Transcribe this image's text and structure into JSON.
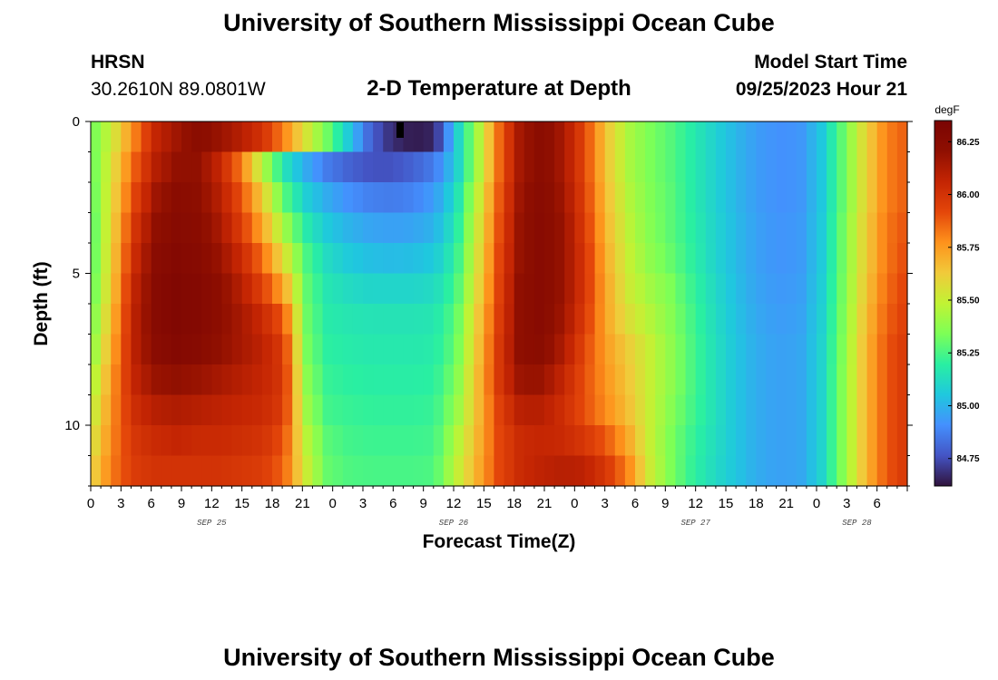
{
  "page": {
    "title_top": "University of Southern Mississippi Ocean Cube",
    "title_bottom": "University of Southern Mississippi Ocean Cube",
    "station_name": "HRSN",
    "station_coords": "30.2610N  89.0801W",
    "plot_title": "2-D Temperature at Depth",
    "model_start_label": "Model Start Time",
    "model_start_value": "09/25/2023 Hour 21"
  },
  "colors": {
    "scale": [
      "#30123b",
      "#4454c4",
      "#4490fe",
      "#1fc8de",
      "#29efa2",
      "#7dff56",
      "#c1f334",
      "#f1ca3a",
      "#fe921c",
      "#e4460a",
      "#c42503",
      "#8f0f01",
      "#7a0403"
    ]
  },
  "chart_data": {
    "type": "heatmap",
    "title": "2-D Temperature at Depth",
    "xlabel": "Forecast Time(Z)",
    "ylabel": "Depth (ft)",
    "colorbar_unit": "degF",
    "colorbar_ticks": [
      "86.25",
      "86.00",
      "85.75",
      "85.50",
      "85.25",
      "85.00",
      "84.75"
    ],
    "colorbar_values": [
      86.25,
      86.0,
      85.75,
      85.5,
      85.25,
      85.0,
      84.75
    ],
    "colorbar_range": [
      84.62,
      86.35
    ],
    "x_range_hours": [
      0,
      81
    ],
    "x_ticks": [
      "0",
      "3",
      "6",
      "9",
      "12",
      "15",
      "18",
      "21",
      "0",
      "3",
      "6",
      "9",
      "12",
      "15",
      "18",
      "21",
      "0",
      "3",
      "6",
      "9",
      "12",
      "15",
      "18",
      "21",
      "0",
      "3",
      "6"
    ],
    "date_labels": [
      {
        "text": "SEP 25",
        "hour": 12
      },
      {
        "text": "SEP 26",
        "hour": 36
      },
      {
        "text": "SEP 27",
        "hour": 60
      },
      {
        "text": "SEP 28",
        "hour": 76
      }
    ],
    "y_range_ft": [
      0,
      12
    ],
    "y_ticks": [
      "0",
      "5",
      "10"
    ],
    "y_tick_values": [
      0,
      5,
      10
    ],
    "depth_rows_ft": [
      0,
      1,
      2,
      3,
      4,
      5,
      6,
      7,
      8,
      9,
      10,
      11
    ],
    "time_step_hours": 1,
    "temperature_degF": [
      [
        85.3,
        85.52,
        85.79,
        86.06,
        86.16,
        86.24,
        86.18,
        86.1,
        86.0,
        85.8,
        85.55,
        85.32,
        85.06,
        84.8,
        84.68,
        84.64,
        84.66,
        85.06,
        85.42,
        85.85,
        86.16,
        86.24,
        86.14,
        85.92,
        85.64,
        85.44,
        85.34,
        85.27,
        85.18,
        85.09,
        85.01,
        84.94,
        84.91,
        84.92,
        85.05,
        85.3,
        85.58,
        85.8,
        85.88
      ],
      [
        85.28,
        85.56,
        85.86,
        86.1,
        86.2,
        86.2,
        86.06,
        85.82,
        85.46,
        85.15,
        84.98,
        84.86,
        84.8,
        84.76,
        84.76,
        84.8,
        84.86,
        85.06,
        85.42,
        85.85,
        86.16,
        86.24,
        86.14,
        85.92,
        85.64,
        85.44,
        85.34,
        85.27,
        85.18,
        85.09,
        85.01,
        84.94,
        84.91,
        84.92,
        85.05,
        85.3,
        85.58,
        85.8,
        85.88
      ],
      [
        85.26,
        85.58,
        85.92,
        86.16,
        86.24,
        86.22,
        86.1,
        85.9,
        85.62,
        85.28,
        85.08,
        84.98,
        84.91,
        84.87,
        84.86,
        84.88,
        84.94,
        85.12,
        85.48,
        85.88,
        86.18,
        86.26,
        86.16,
        85.94,
        85.66,
        85.46,
        85.35,
        85.28,
        85.18,
        85.09,
        85.01,
        84.94,
        84.91,
        84.92,
        85.05,
        85.3,
        85.58,
        85.8,
        85.88
      ],
      [
        85.24,
        85.6,
        85.98,
        86.2,
        86.26,
        86.24,
        86.14,
        85.96,
        85.72,
        85.42,
        85.18,
        85.06,
        85.0,
        84.96,
        84.95,
        84.96,
        85.0,
        85.16,
        85.52,
        85.9,
        86.2,
        86.26,
        86.18,
        85.96,
        85.68,
        85.48,
        85.36,
        85.28,
        85.19,
        85.1,
        85.02,
        84.95,
        84.92,
        84.93,
        85.06,
        85.32,
        85.6,
        85.82,
        85.9
      ],
      [
        85.24,
        85.62,
        86.02,
        86.24,
        86.28,
        86.26,
        86.18,
        86.04,
        85.84,
        85.56,
        85.26,
        85.12,
        85.06,
        85.03,
        85.02,
        85.03,
        85.06,
        85.2,
        85.55,
        85.92,
        86.2,
        86.26,
        86.18,
        85.98,
        85.7,
        85.5,
        85.38,
        85.3,
        85.2,
        85.1,
        85.02,
        84.95,
        84.92,
        84.93,
        85.06,
        85.32,
        85.6,
        85.82,
        85.92
      ],
      [
        85.26,
        85.64,
        86.06,
        86.26,
        86.3,
        86.28,
        86.22,
        86.1,
        85.94,
        85.72,
        85.3,
        85.16,
        85.12,
        85.1,
        85.1,
        85.1,
        85.12,
        85.24,
        85.58,
        85.94,
        86.22,
        86.26,
        86.18,
        85.98,
        85.72,
        85.52,
        85.42,
        85.34,
        85.22,
        85.12,
        85.03,
        84.96,
        84.93,
        84.94,
        85.07,
        85.33,
        85.62,
        85.84,
        85.94
      ],
      [
        85.3,
        85.68,
        86.08,
        86.26,
        86.3,
        86.28,
        86.22,
        86.14,
        86.04,
        85.88,
        85.32,
        85.18,
        85.16,
        85.15,
        85.15,
        85.15,
        85.16,
        85.28,
        85.62,
        85.96,
        86.22,
        86.26,
        86.16,
        85.96,
        85.72,
        85.56,
        85.46,
        85.36,
        85.24,
        85.13,
        85.04,
        84.97,
        84.94,
        84.95,
        85.08,
        85.34,
        85.64,
        85.86,
        85.96
      ],
      [
        85.34,
        85.72,
        86.08,
        86.24,
        86.28,
        86.26,
        86.2,
        86.14,
        86.08,
        85.96,
        85.34,
        85.2,
        85.18,
        85.17,
        85.17,
        85.17,
        85.18,
        85.3,
        85.64,
        85.98,
        86.22,
        86.24,
        86.12,
        85.92,
        85.74,
        85.62,
        85.5,
        85.38,
        85.25,
        85.14,
        85.05,
        84.98,
        84.95,
        84.96,
        85.09,
        85.35,
        85.66,
        85.88,
        85.98
      ],
      [
        85.4,
        85.76,
        86.06,
        86.18,
        86.2,
        86.18,
        86.14,
        86.1,
        86.06,
        85.98,
        85.38,
        85.22,
        85.2,
        85.19,
        85.19,
        85.19,
        85.2,
        85.34,
        85.66,
        85.98,
        86.18,
        86.18,
        86.06,
        85.9,
        85.76,
        85.64,
        85.5,
        85.38,
        85.25,
        85.14,
        85.05,
        84.98,
        84.95,
        84.96,
        85.09,
        85.36,
        85.66,
        85.88,
        85.98
      ],
      [
        85.46,
        85.78,
        86.02,
        86.1,
        86.12,
        86.1,
        86.08,
        86.06,
        86.04,
        85.96,
        85.42,
        85.24,
        85.22,
        85.21,
        85.21,
        85.21,
        85.22,
        85.38,
        85.66,
        85.94,
        86.1,
        86.1,
        86.02,
        85.9,
        85.78,
        85.66,
        85.5,
        85.36,
        85.24,
        85.14,
        85.05,
        84.98,
        84.95,
        84.96,
        85.09,
        85.36,
        85.66,
        85.88,
        85.98
      ],
      [
        85.52,
        85.8,
        85.98,
        86.04,
        86.06,
        86.04,
        86.04,
        86.02,
        86.0,
        85.9,
        85.48,
        85.28,
        85.24,
        85.23,
        85.23,
        85.23,
        85.24,
        85.44,
        85.68,
        85.92,
        86.04,
        86.06,
        86.04,
        85.98,
        85.88,
        85.72,
        85.5,
        85.34,
        85.22,
        85.13,
        85.05,
        84.98,
        84.95,
        84.96,
        85.09,
        85.36,
        85.66,
        85.88,
        85.98
      ],
      [
        85.58,
        85.82,
        85.96,
        86.0,
        86.0,
        86.0,
        86.0,
        85.98,
        85.96,
        85.86,
        85.52,
        85.3,
        85.26,
        85.25,
        85.25,
        85.25,
        85.26,
        85.48,
        85.7,
        85.92,
        86.04,
        86.08,
        86.1,
        86.08,
        85.98,
        85.8,
        85.52,
        85.34,
        85.21,
        85.12,
        85.05,
        84.98,
        84.95,
        84.96,
        85.09,
        85.36,
        85.66,
        85.88,
        85.98
      ]
    ]
  }
}
